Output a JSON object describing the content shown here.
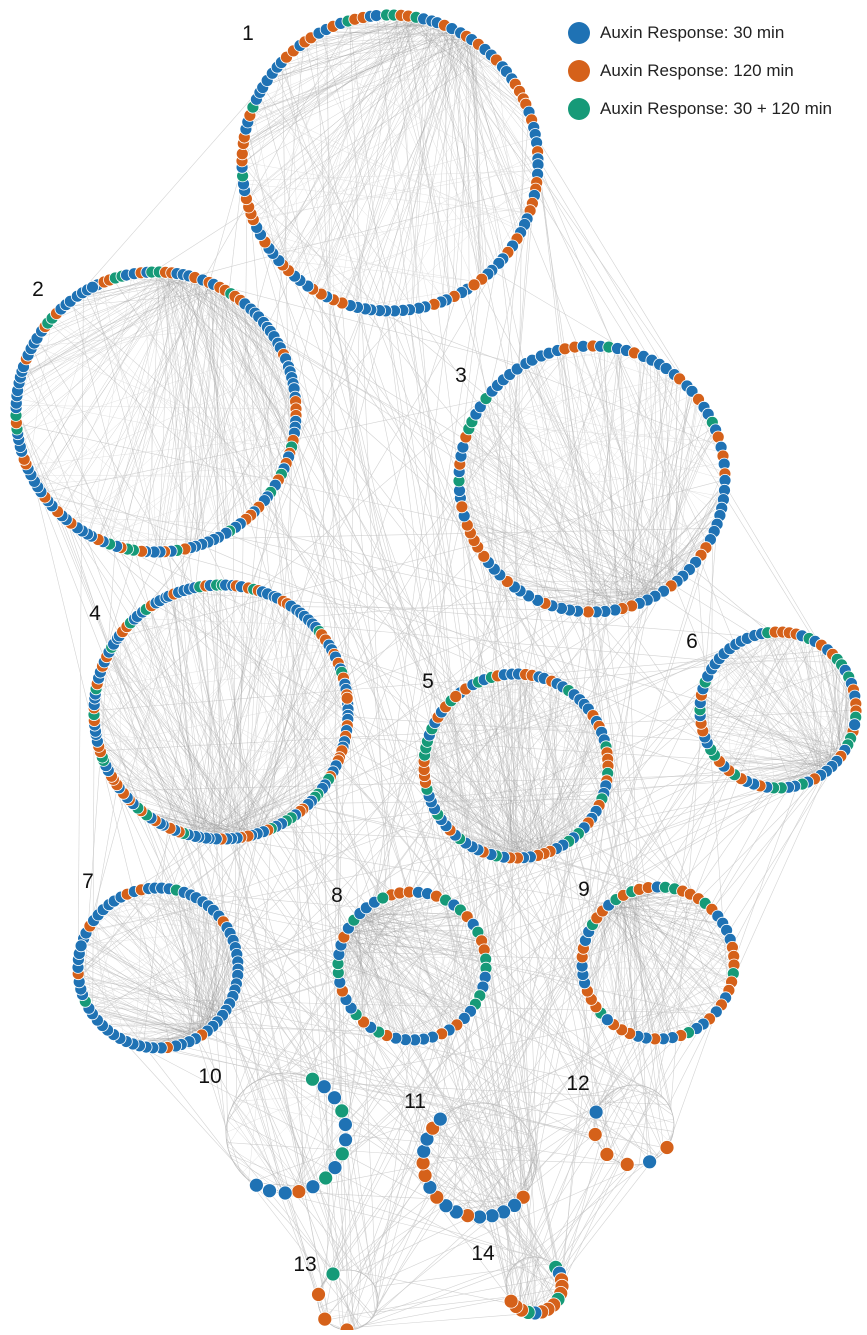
{
  "colors": {
    "response_30": "#1f72b4",
    "response_120": "#d5611a",
    "response_both": "#169a78",
    "edge": "#9a9a9a",
    "background": "#ffffff"
  },
  "legend": {
    "items": [
      {
        "key": "response_30",
        "label": "Auxin Response: 30 min"
      },
      {
        "key": "response_120",
        "label": "Auxin Response: 120 min"
      },
      {
        "key": "response_both",
        "label": "Auxin Response: 30 + 120 min"
      }
    ]
  },
  "modules": [
    {
      "label": "1",
      "node_count": 120,
      "mix": [
        0.6,
        0.32,
        0.08
      ]
    },
    {
      "label": "2",
      "node_count": 140,
      "mix": [
        0.6,
        0.28,
        0.12
      ]
    },
    {
      "label": "3",
      "node_count": 95,
      "mix": [
        0.66,
        0.26,
        0.08
      ]
    },
    {
      "label": "4",
      "node_count": 150,
      "mix": [
        0.58,
        0.3,
        0.12
      ]
    },
    {
      "label": "5",
      "node_count": 85,
      "mix": [
        0.45,
        0.35,
        0.2
      ]
    },
    {
      "label": "6",
      "node_count": 70,
      "mix": [
        0.45,
        0.35,
        0.2
      ]
    },
    {
      "label": "7",
      "node_count": 70,
      "mix": [
        0.82,
        0.1,
        0.08
      ]
    },
    {
      "label": "8",
      "node_count": 50,
      "mix": [
        0.35,
        0.45,
        0.2
      ]
    },
    {
      "label": "9",
      "node_count": 55,
      "mix": [
        0.35,
        0.5,
        0.15
      ]
    },
    {
      "label": "10",
      "node_count": 14,
      "mix": [
        0.55,
        0.25,
        0.2
      ]
    },
    {
      "label": "11",
      "node_count": 16,
      "mix": [
        0.5,
        0.35,
        0.15
      ]
    },
    {
      "label": "12",
      "node_count": 6,
      "mix": [
        0.4,
        0.6,
        0.0
      ]
    },
    {
      "label": "13",
      "node_count": 4,
      "mix": [
        0.0,
        0.4,
        0.6
      ]
    },
    {
      "label": "14",
      "node_count": 14,
      "mix": [
        0.3,
        0.5,
        0.2
      ]
    }
  ]
}
